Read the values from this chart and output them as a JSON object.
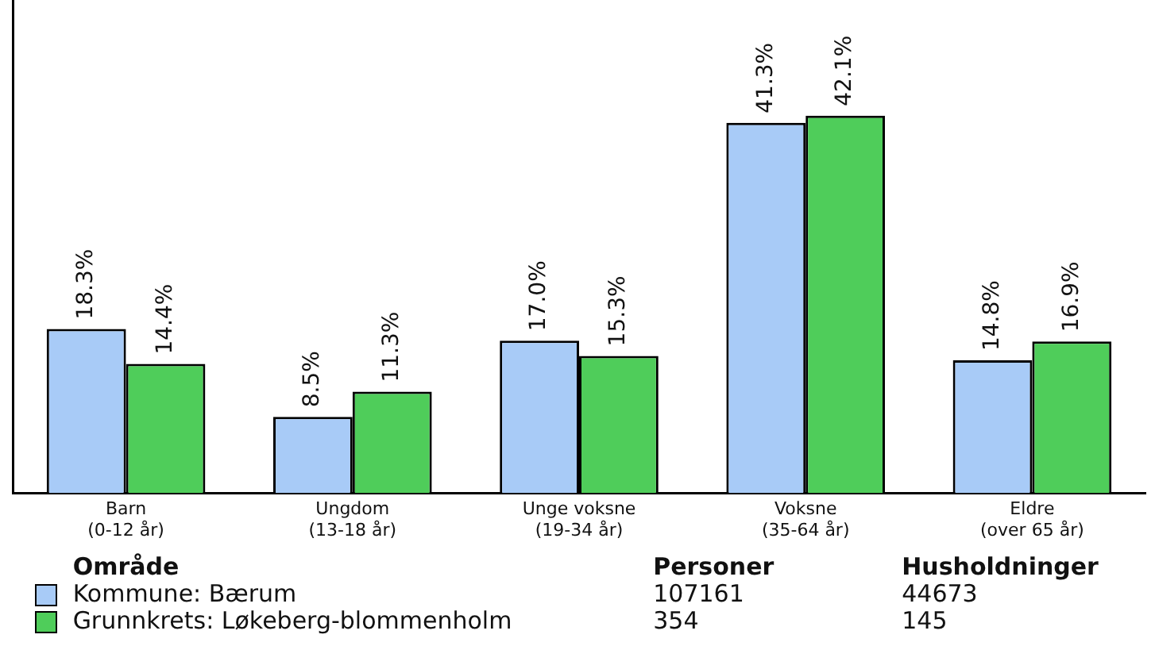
{
  "chart_data": {
    "type": "bar",
    "categories": [
      "Barn\n(0-12 år)",
      "Ungdom\n(13-18 år)",
      "Unge voksne\n(19-34 år)",
      "Voksne\n(35-64 år)",
      "Eldre\n(over 65 år)"
    ],
    "series": [
      {
        "name": "Kommune: Bærum",
        "color": "#a8cbf7",
        "values": [
          18.3,
          8.5,
          17.0,
          41.3,
          14.8
        ],
        "value_labels": [
          "18.3%",
          "8.5%",
          "17.0%",
          "41.3%",
          "14.8%"
        ]
      },
      {
        "name": "Grunnkrets: Løkeberg-blommenholm",
        "color": "#4fcd5a",
        "values": [
          14.4,
          11.3,
          15.3,
          42.1,
          16.9
        ],
        "value_labels": [
          "14.4%",
          "11.3%",
          "15.3%",
          "42.1%",
          "16.9%"
        ]
      }
    ],
    "ylim": [
      0,
      55
    ],
    "tick_labels": "x",
    "grid": false,
    "legend": "bottom",
    "annotations": [
      "Område",
      "Personer",
      "Husholdninger",
      "107161",
      "44673",
      "354",
      "145"
    ]
  }
}
